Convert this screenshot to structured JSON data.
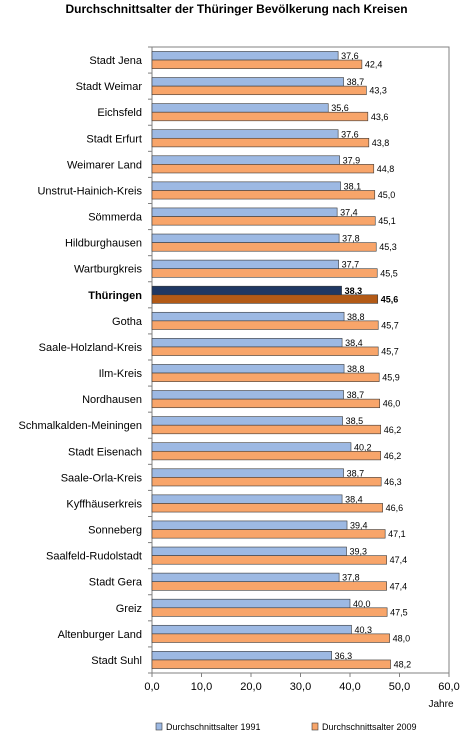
{
  "chart_data": {
    "type": "bar",
    "orientation": "horizontal",
    "title": "Durchschnittsalter der Thüringer Bevölkerung nach Kreisen",
    "xlabel": "Jahre",
    "ylabel": "",
    "xlim": [
      0,
      60
    ],
    "xticks": [
      "0,0",
      "10,0",
      "20,0",
      "30,0",
      "40,0",
      "50,0",
      "60,0"
    ],
    "grid": false,
    "legend_position": "bottom",
    "highlight_category": "Thüringen",
    "categories": [
      "Stadt Jena",
      "Stadt Weimar",
      "Eichsfeld",
      "Stadt Erfurt",
      "Weimarer Land",
      "Unstrut-Hainich-Kreis",
      "Sömmerda",
      "Hildburghausen",
      "Wartburgkreis",
      "Thüringen",
      "Gotha",
      "Saale-Holzland-Kreis",
      "Ilm-Kreis",
      "Nordhausen",
      "Schmalkalden-Meiningen",
      "Stadt Eisenach",
      "Saale-Orla-Kreis",
      "Kyffhäuserkreis",
      "Sonneberg",
      "Saalfeld-Rudolstadt",
      "Stadt Gera",
      "Greiz",
      "Altenburger Land",
      "Stadt Suhl"
    ],
    "series": [
      {
        "name": "Durchschnittsalter 1991",
        "color": "#9db9e3",
        "highlight_color": "#1f3864",
        "values": [
          37.6,
          38.7,
          35.6,
          37.6,
          37.9,
          38.1,
          37.4,
          37.8,
          37.7,
          38.3,
          38.8,
          38.4,
          38.8,
          38.7,
          38.5,
          40.2,
          38.7,
          38.4,
          39.4,
          39.3,
          37.8,
          40.0,
          40.3,
          36.3
        ],
        "labels": [
          "37,6",
          "38,7",
          "35,6",
          "37,6",
          "37,9",
          "38,1",
          "37,4",
          "37,8",
          "37,7",
          "38,3",
          "38,8",
          "38,4",
          "38,8",
          "38,7",
          "38,5",
          "40,2",
          "38,7",
          "38,4",
          "39,4",
          "39,3",
          "37,8",
          "40,0",
          "40,3",
          "36,3"
        ]
      },
      {
        "name": "Durchschnittsalter 2009",
        "color": "#f8a56a",
        "highlight_color": "#b35a16",
        "values": [
          42.4,
          43.3,
          43.6,
          43.8,
          44.8,
          45.0,
          45.1,
          45.3,
          45.5,
          45.6,
          45.7,
          45.7,
          45.9,
          46.0,
          46.2,
          46.2,
          46.3,
          46.6,
          47.1,
          47.4,
          47.4,
          47.5,
          48.0,
          48.2
        ],
        "labels": [
          "42,4",
          "43,3",
          "43,6",
          "43,8",
          "44,8",
          "45,0",
          "45,1",
          "45,3",
          "45,5",
          "45,6",
          "45,7",
          "45,7",
          "45,9",
          "46,0",
          "46,2",
          "46,2",
          "46,3",
          "46,6",
          "47,1",
          "47,4",
          "47,4",
          "47,5",
          "48,0",
          "48,2"
        ]
      }
    ]
  }
}
